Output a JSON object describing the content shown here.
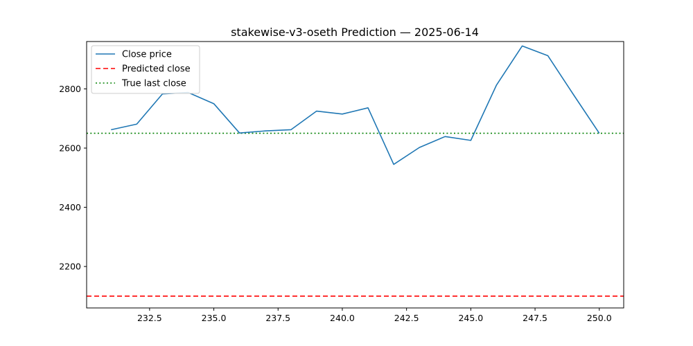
{
  "chart_data": {
    "type": "line",
    "title": "stakewise-v3-oseth Prediction — 2025-06-14",
    "xlabel": "",
    "ylabel": "",
    "xlim": [
      230.05,
      250.95
    ],
    "ylim": [
      2060,
      2960
    ],
    "xticks": [
      232.5,
      235.0,
      237.5,
      240.0,
      242.5,
      245.0,
      247.5,
      250.0
    ],
    "xtick_labels": [
      "232.5",
      "235.0",
      "237.5",
      "240.0",
      "242.5",
      "245.0",
      "247.5",
      "250.0"
    ],
    "yticks": [
      2200,
      2400,
      2600,
      2800
    ],
    "ytick_labels": [
      "2200",
      "2400",
      "2600",
      "2800"
    ],
    "grid": false,
    "legend_position": "upper-left",
    "series": [
      {
        "name": "Close price",
        "style": "solid",
        "color": "#1f77b4",
        "x": [
          231,
          232,
          233,
          234,
          235,
          236,
          237,
          238,
          239,
          240,
          241,
          242,
          243,
          244,
          245,
          246,
          247,
          248,
          249,
          250
        ],
        "values": [
          2662,
          2681,
          2783,
          2788,
          2750,
          2651,
          2658,
          2662,
          2725,
          2715,
          2736,
          2545,
          2602,
          2639,
          2626,
          2813,
          2945,
          2912,
          2780,
          2650
        ]
      }
    ],
    "reference_lines": [
      {
        "name": "Predicted close",
        "orientation": "horizontal",
        "value": 2100,
        "style": "dashed",
        "color": "#ff0000"
      },
      {
        "name": "True last close",
        "orientation": "horizontal",
        "value": 2650,
        "style": "dotted",
        "color": "#008000"
      }
    ]
  }
}
